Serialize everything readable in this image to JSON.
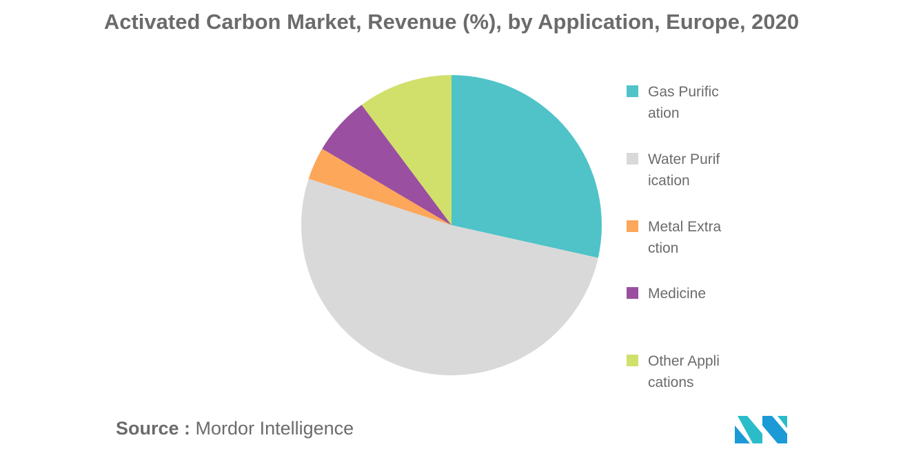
{
  "chart_data": {
    "type": "pie",
    "title": "Activated Carbon Market, Revenue (%), by Application, Europe, 2020",
    "categories": [
      "Gas Purification",
      "Water Purification",
      "Metal Extraction",
      "Medicine",
      "Other Applications"
    ],
    "values": [
      28.5,
      51.5,
      3.5,
      6.3,
      10.2
    ],
    "colors": [
      "#4fc3c8",
      "#d9d9d9",
      "#fca75a",
      "#9a4fa0",
      "#d1e06b"
    ],
    "start_angle": 0,
    "direction": "clockwise",
    "legend_position": "right"
  },
  "source": {
    "label": "Source :",
    "text": "Mordor Intelligence"
  },
  "logo": {
    "icon": "mordor-intelligence-logo-icon",
    "colors": [
      "#1b9ad6",
      "#2bbcc9"
    ]
  }
}
